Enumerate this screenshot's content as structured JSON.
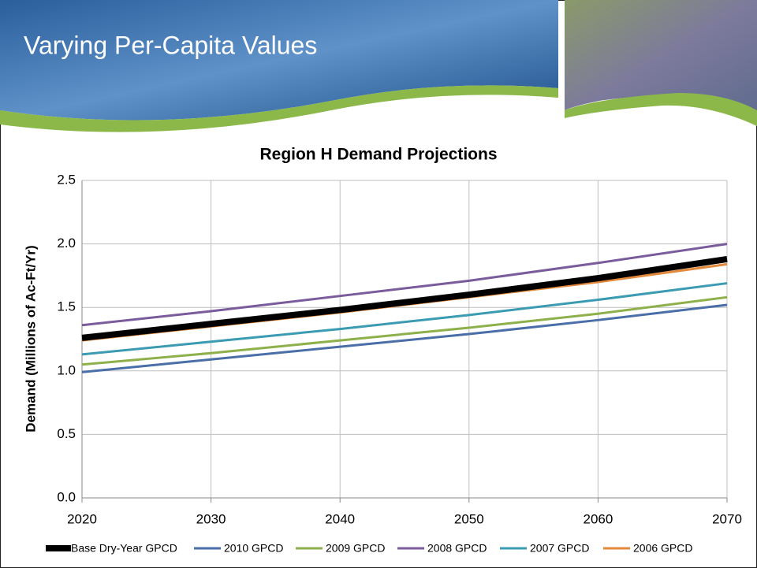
{
  "slide_title": "Varying Per-Capita Values",
  "chart_data": {
    "type": "line",
    "title": "Region H Demand Projections",
    "y_label": "Demand (Millions of Ac-Ft/Yr)",
    "x": [
      2020,
      2030,
      2040,
      2050,
      2060,
      2070
    ],
    "xlim": [
      2020,
      2070
    ],
    "xticks": [
      2020,
      2030,
      2040,
      2050,
      2060,
      2070
    ],
    "ylim": [
      0,
      2.5
    ],
    "yticks": [
      {
        "value": 0,
        "label": "0.0"
      },
      0.5,
      {
        "value": 1,
        "label": "1.0"
      },
      1.5,
      {
        "value": 2,
        "label": "2.0"
      },
      2.5
    ],
    "grid": true,
    "legend": "bottom",
    "series": [
      {
        "name": "Base Dry-Year GPCD",
        "color": "#000000",
        "values": [
          1.26,
          1.37,
          1.48,
          1.6,
          1.73,
          1.88
        ]
      },
      {
        "name": "2010 GPCD",
        "color": "#4a6ea8",
        "values": [
          0.99,
          1.09,
          1.19,
          1.29,
          1.4,
          1.52
        ]
      },
      {
        "name": "2009 GPCD",
        "color": "#8db04b",
        "values": [
          1.05,
          1.14,
          1.24,
          1.34,
          1.45,
          1.58
        ]
      },
      {
        "name": "2008 GPCD",
        "color": "#7a5b9c",
        "values": [
          1.36,
          1.47,
          1.59,
          1.71,
          1.85,
          2.0
        ]
      },
      {
        "name": "2007 GPCD",
        "color": "#3b9bb2",
        "values": [
          1.13,
          1.23,
          1.33,
          1.44,
          1.56,
          1.69
        ]
      },
      {
        "name": "2006 GPCD",
        "color": "#e2893b",
        "values": [
          1.24,
          1.35,
          1.46,
          1.58,
          1.7,
          1.84
        ]
      }
    ]
  }
}
